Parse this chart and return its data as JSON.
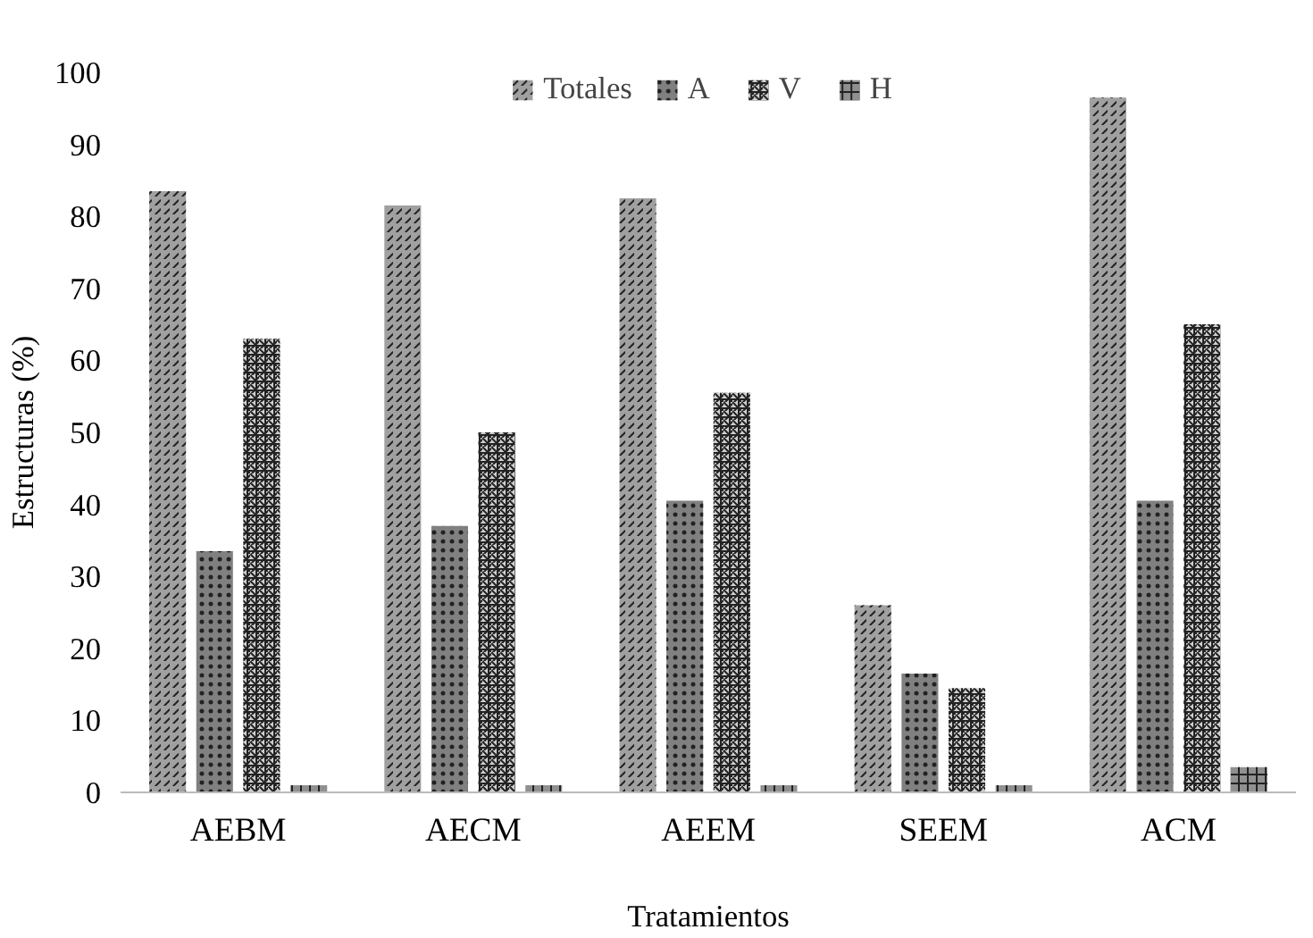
{
  "chart_data": {
    "type": "bar",
    "xlabel": "Tratamientos",
    "ylabel": "Estructuras (%)",
    "categories": [
      "AEBM",
      "AECM",
      "AEEM",
      "SEEM",
      "ACM"
    ],
    "series": [
      {
        "name": "Totales",
        "color": "#a0a0a0",
        "values": [
          83.5,
          81.5,
          82.5,
          26,
          96.5
        ]
      },
      {
        "name": "A",
        "color": "#808080",
        "values": [
          33.5,
          37,
          40.5,
          16.5,
          40.5
        ]
      },
      {
        "name": "V",
        "color": "#d0d0d0",
        "values": [
          63,
          50,
          55.5,
          14.5,
          65
        ]
      },
      {
        "name": "H",
        "color": "#909090",
        "values": [
          1,
          1,
          1,
          1,
          3.5
        ]
      }
    ],
    "ylim": [
      0,
      100
    ],
    "yticks": [
      0,
      10,
      20,
      30,
      40,
      50,
      60,
      70,
      80,
      90,
      100
    ],
    "grid": false,
    "legend": "top"
  }
}
